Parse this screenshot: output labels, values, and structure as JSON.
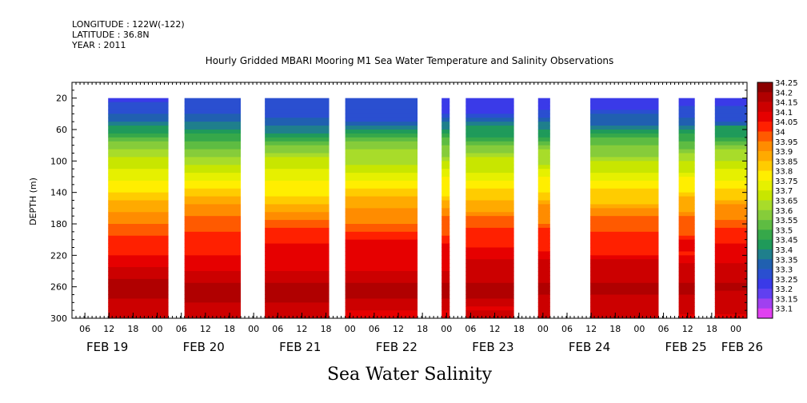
{
  "header": {
    "longitude": "LONGITUDE : 122W(-122)",
    "latitude": "LATITUDE : 36.8N",
    "year": "YEAR : 2011"
  },
  "chart_data": {
    "type": "heatmap",
    "title": "Hourly Gridded MBARI Mooring M1 Sea Water Temperature and Salinity Observations",
    "ylabel": "DEPTH (m)",
    "xlabel": "Sea Water Salinity",
    "x_start_hours": 0,
    "ylim": [
      300,
      0
    ],
    "y_ticks": [
      20,
      60,
      100,
      140,
      180,
      220,
      260,
      300
    ],
    "x_hour_ticks": [
      "06",
      "12",
      "18",
      "00",
      "06",
      "12",
      "18",
      "00",
      "06",
      "12",
      "18",
      "00",
      "06",
      "12",
      "18",
      "00",
      "06",
      "12",
      "18",
      "00",
      "06",
      "12",
      "18",
      "00",
      "06",
      "12",
      "18",
      "00",
      "06",
      "12",
      "18",
      "00"
    ],
    "x_date_labels": [
      {
        "label": "FEB 19",
        "hour": 6
      },
      {
        "label": "FEB 20",
        "hour": 30
      },
      {
        "label": "FEB 21",
        "hour": 54
      },
      {
        "label": "FEB 22",
        "hour": 78
      },
      {
        "label": "FEB 23",
        "hour": 102
      },
      {
        "label": "FEB 24",
        "hour": 126
      },
      {
        "label": "FEB 25",
        "hour": 150
      },
      {
        "label": "FEB 26",
        "hour": 164
      }
    ],
    "x_range_hours": [
      0,
      168
    ],
    "colorbar_levels": [
      "34.25",
      "34.2",
      "34.15",
      "34.1",
      "34.05",
      "34",
      "33.95",
      "33.9",
      "33.85",
      "33.8",
      "33.75",
      "33.7",
      "33.65",
      "33.6",
      "33.55",
      "33.5",
      "33.45",
      "33.4",
      "33.35",
      "33.3",
      "33.25",
      "33.2",
      "33.15",
      "33.1"
    ],
    "colorbar_colors": [
      "#8b0000",
      "#b00000",
      "#cc0000",
      "#e60000",
      "#ff2000",
      "#ff5a00",
      "#ff8c00",
      "#ffaa00",
      "#ffcc00",
      "#ffee00",
      "#e6f000",
      "#c8e600",
      "#a8dc2a",
      "#86cc3a",
      "#5ebc42",
      "#36a84a",
      "#1f9a5a",
      "#1f7f8c",
      "#2060b0",
      "#2a4fd0",
      "#3a3ae8",
      "#6040f0",
      "#a040f0",
      "#e040f0"
    ],
    "data_segments": [
      {
        "start_hour": 9,
        "end_hour": 24,
        "top_depth": 20
      },
      {
        "start_hour": 28,
        "end_hour": 42,
        "top_depth": 20
      },
      {
        "start_hour": 48,
        "end_hour": 64,
        "top_depth": 20
      },
      {
        "start_hour": 68,
        "end_hour": 86,
        "top_depth": 20
      },
      {
        "start_hour": 92,
        "end_hour": 94,
        "top_depth": 20
      },
      {
        "start_hour": 98,
        "end_hour": 110,
        "top_depth": 20
      },
      {
        "start_hour": 116,
        "end_hour": 119,
        "top_depth": 20
      },
      {
        "start_hour": 129,
        "end_hour": 146,
        "top_depth": 20
      },
      {
        "start_hour": 151,
        "end_hour": 155,
        "top_depth": 20
      },
      {
        "start_hour": 160,
        "end_hour": 168,
        "top_depth": 20
      }
    ],
    "profile_mean": [
      {
        "depth": 20,
        "salinity": 33.28
      },
      {
        "depth": 40,
        "salinity": 33.32
      },
      {
        "depth": 60,
        "salinity": 33.45
      },
      {
        "depth": 80,
        "salinity": 33.6
      },
      {
        "depth": 100,
        "salinity": 33.7
      },
      {
        "depth": 120,
        "salinity": 33.78
      },
      {
        "depth": 140,
        "salinity": 33.85
      },
      {
        "depth": 160,
        "salinity": 33.95
      },
      {
        "depth": 180,
        "salinity": 34.02
      },
      {
        "depth": 200,
        "salinity": 34.08
      },
      {
        "depth": 220,
        "salinity": 34.12
      },
      {
        "depth": 240,
        "salinity": 34.17
      },
      {
        "depth": 260,
        "salinity": 34.22
      },
      {
        "depth": 280,
        "salinity": 34.18
      },
      {
        "depth": 300,
        "salinity": 34.15
      }
    ]
  }
}
